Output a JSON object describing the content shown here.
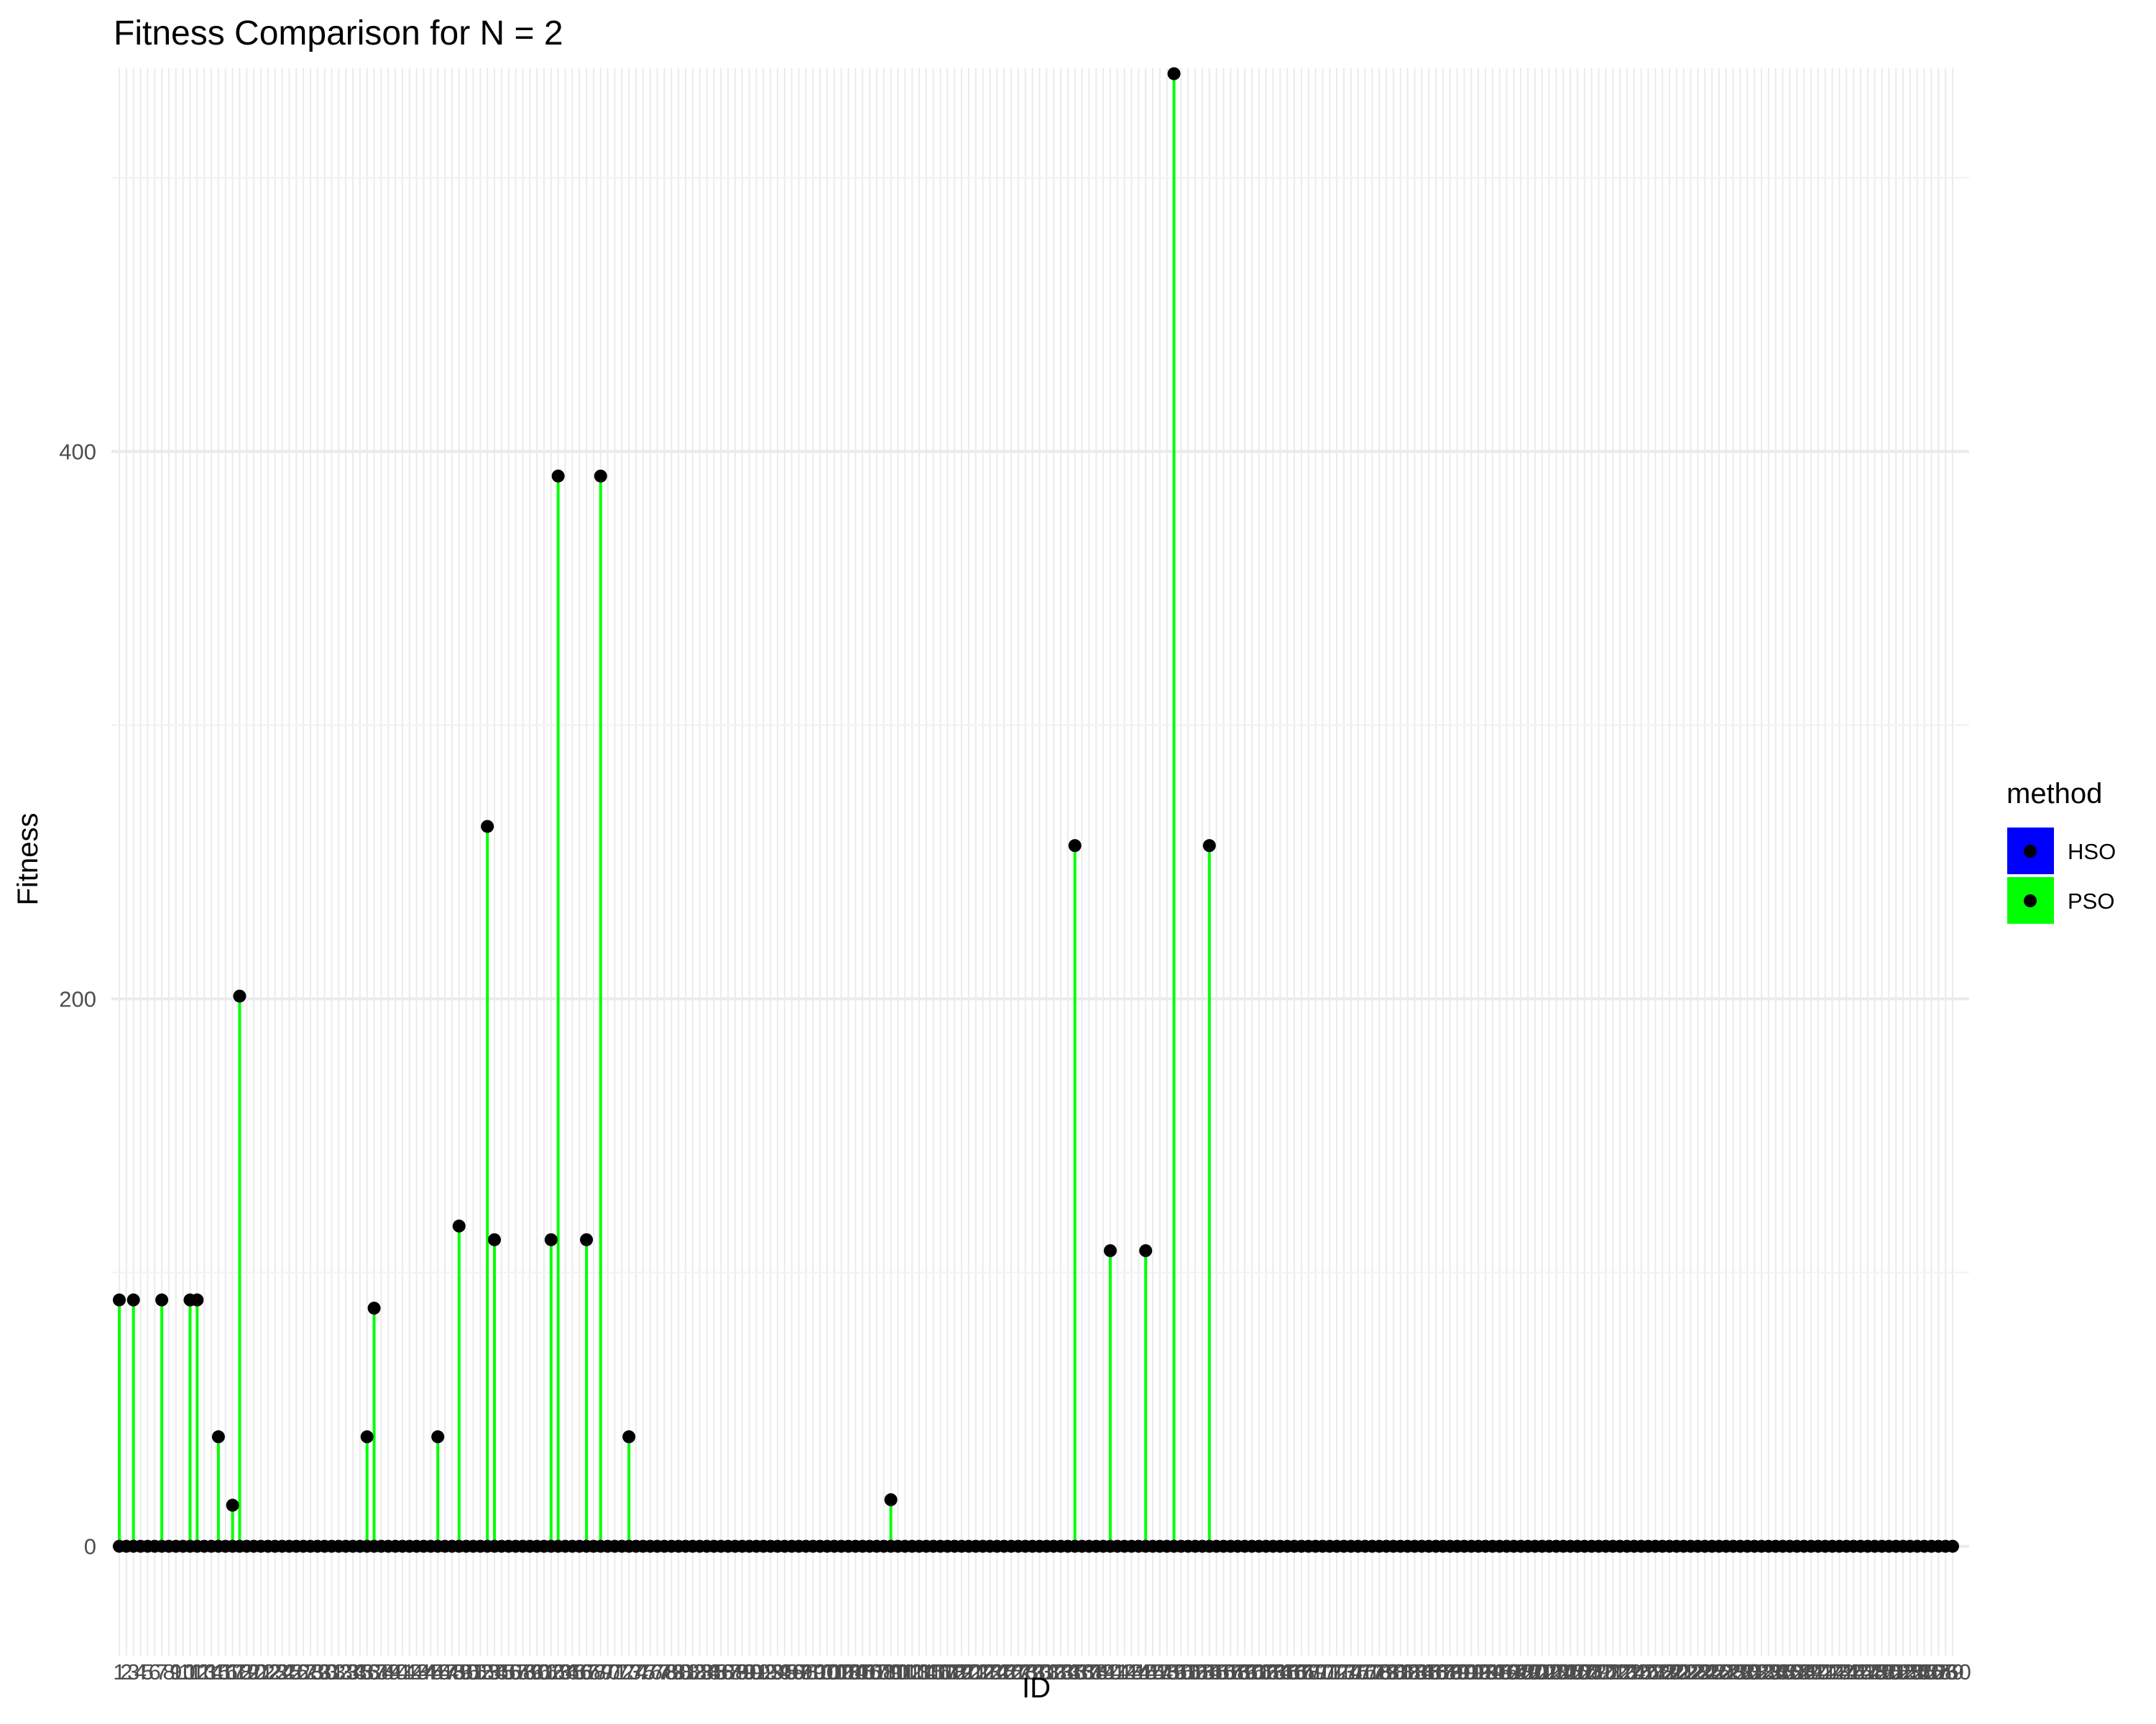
{
  "chart_data": {
    "type": "lollipop",
    "title": "Fitness Comparison for N = 2",
    "xlabel": "ID",
    "ylabel": "Fitness",
    "x_categories_count": 260,
    "ylim": [
      -40,
      540
    ],
    "y_ticks": [
      0,
      200,
      400
    ],
    "y_tick_labels": [
      "0",
      "200",
      "400"
    ],
    "grid": true,
    "legend": {
      "title": "method",
      "position": "right",
      "entries": [
        {
          "name": "HSO",
          "color": "#0000ff"
        },
        {
          "name": "PSO",
          "color": "#00ff00"
        }
      ]
    },
    "point_color": "#000000",
    "stem_color": "#00ff00",
    "nonzero_points": [
      {
        "id": 1,
        "value": 90
      },
      {
        "id": 3,
        "value": 90
      },
      {
        "id": 7,
        "value": 90
      },
      {
        "id": 11,
        "value": 90
      },
      {
        "id": 12,
        "value": 90
      },
      {
        "id": 15,
        "value": 40
      },
      {
        "id": 17,
        "value": 15
      },
      {
        "id": 18,
        "value": 201
      },
      {
        "id": 36,
        "value": 40
      },
      {
        "id": 37,
        "value": 87
      },
      {
        "id": 46,
        "value": 40
      },
      {
        "id": 49,
        "value": 117
      },
      {
        "id": 53,
        "value": 263
      },
      {
        "id": 54,
        "value": 112
      },
      {
        "id": 62,
        "value": 112
      },
      {
        "id": 63,
        "value": 391
      },
      {
        "id": 67,
        "value": 112
      },
      {
        "id": 69,
        "value": 391
      },
      {
        "id": 73,
        "value": 40
      },
      {
        "id": 110,
        "value": 17
      },
      {
        "id": 136,
        "value": 256
      },
      {
        "id": 141,
        "value": 108
      },
      {
        "id": 146,
        "value": 108
      },
      {
        "id": 150,
        "value": 538
      },
      {
        "id": 155,
        "value": 256
      }
    ]
  }
}
